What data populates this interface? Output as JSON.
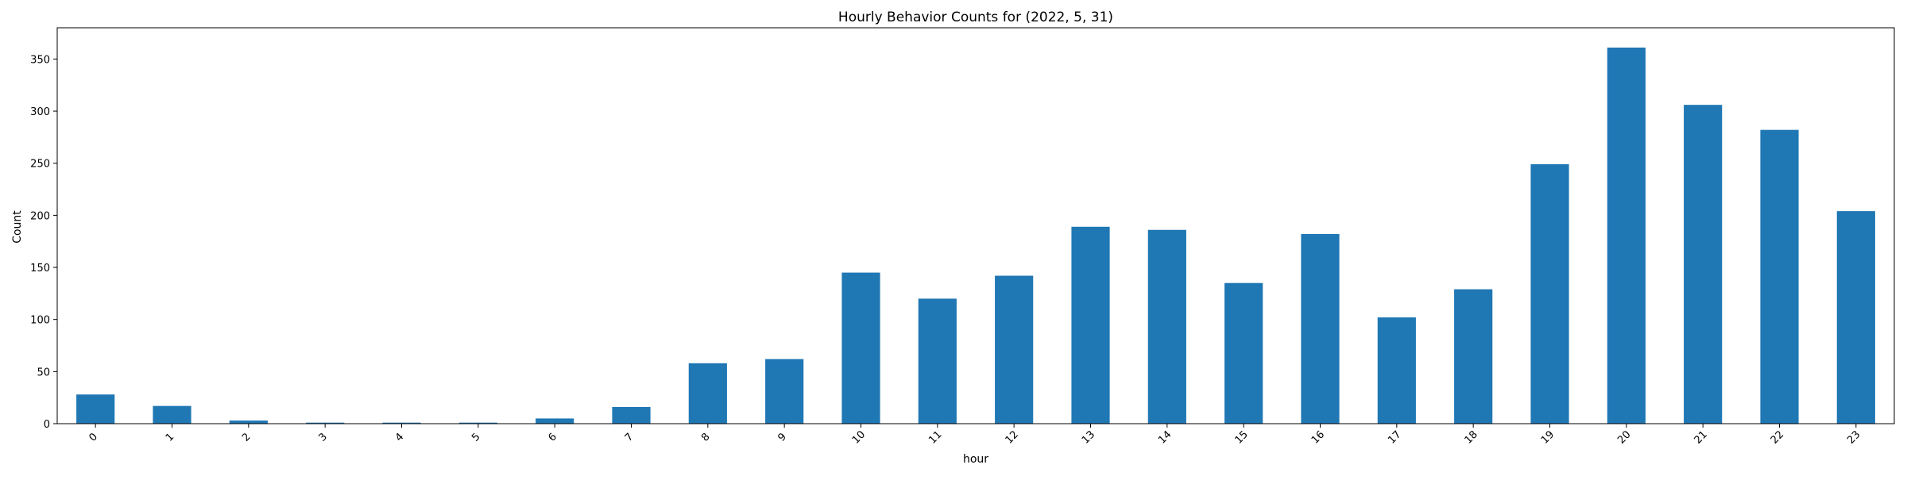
{
  "chart_data": {
    "type": "bar",
    "title": "Hourly Behavior Counts for (2022, 5, 31)",
    "xlabel": "hour",
    "ylabel": "Count",
    "categories": [
      "0",
      "1",
      "2",
      "3",
      "4",
      "5",
      "6",
      "7",
      "8",
      "9",
      "10",
      "11",
      "12",
      "13",
      "14",
      "15",
      "16",
      "17",
      "18",
      "19",
      "20",
      "21",
      "22",
      "23"
    ],
    "values": [
      28,
      17,
      3,
      1,
      1,
      1,
      5,
      16,
      58,
      62,
      145,
      120,
      142,
      189,
      186,
      135,
      182,
      102,
      129,
      249,
      361,
      306,
      282,
      204
    ],
    "ylim": [
      0,
      380
    ],
    "yticks": [
      0,
      50,
      100,
      150,
      200,
      250,
      300,
      350
    ],
    "bar_color": "#1f77b4",
    "grid": false,
    "legend": "none"
  }
}
